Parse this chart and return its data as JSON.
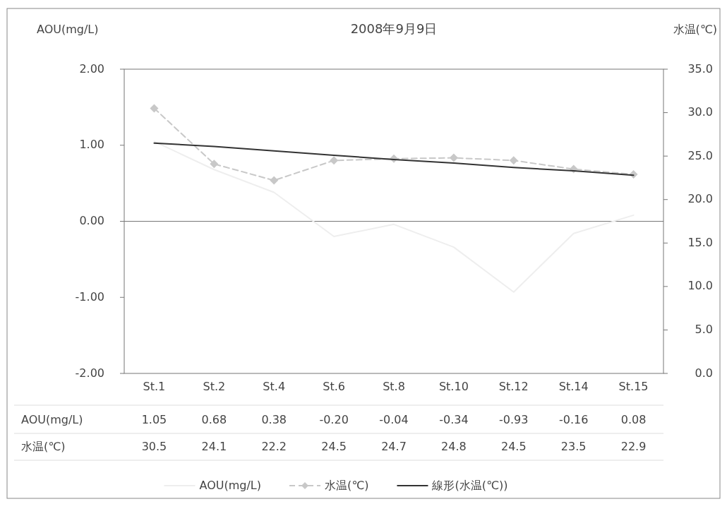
{
  "chart_data": {
    "type": "line",
    "title": "2008年9月9日",
    "ylabel": "AOU(mg/L)",
    "y2label": "水温(℃)",
    "categories": [
      "St.1",
      "St.2",
      "St.4",
      "St.6",
      "St.8",
      "St.10",
      "St.12",
      "St.14",
      "St.15"
    ],
    "ylim": [
      -2,
      2
    ],
    "yticks": [
      {
        "value": -2,
        "label": "-2.00"
      },
      {
        "value": -1,
        "label": "-1.00"
      },
      {
        "value": 0,
        "label": "0.00"
      },
      {
        "value": 1,
        "label": "1.00"
      },
      {
        "value": 2,
        "label": "2.00"
      }
    ],
    "y2lim": [
      0,
      35
    ],
    "y2ticks": [
      {
        "value": 0,
        "label": "0.0"
      },
      {
        "value": 5,
        "label": "5.0"
      },
      {
        "value": 10,
        "label": "10.0"
      },
      {
        "value": 15,
        "label": "15.0"
      },
      {
        "value": 20,
        "label": "20.0"
      },
      {
        "value": 25,
        "label": "25.0"
      },
      {
        "value": 30,
        "label": "30.0"
      },
      {
        "value": 35,
        "label": "35.0"
      }
    ],
    "legend": "bottom",
    "series": [
      {
        "name": "AOU(mg/L)",
        "color": "#eeeeee",
        "values": [
          1.05,
          0.68,
          0.38,
          -0.2,
          -0.04,
          -0.34,
          -0.93,
          -0.16,
          0.08
        ],
        "value_labels": [
          "1.05",
          "0.68",
          "0.38",
          "-0.20",
          "-0.04",
          "-0.34",
          "-0.93",
          "-0.16",
          "0.08"
        ],
        "marker": "none",
        "line_style": "solid"
      },
      {
        "name": "水温(℃)",
        "color": "#c8c8c8",
        "axis": "y2",
        "values": [
          30.5,
          24.1,
          22.2,
          24.5,
          24.7,
          24.8,
          24.5,
          23.5,
          22.9
        ],
        "value_labels": [
          "30.5",
          "24.1",
          "22.2",
          "24.5",
          "24.7",
          "24.8",
          "24.5",
          "23.5",
          "22.9"
        ],
        "marker": "diamond",
        "line_style": "dashed"
      },
      {
        "name": "線形(水温(℃))",
        "color": "#333333",
        "axis": "y2",
        "values": [
          26.5,
          26.1,
          25.6,
          25.1,
          24.6,
          24.2,
          23.7,
          23.3,
          22.8
        ],
        "marker": "none",
        "line_style": "solid"
      }
    ]
  }
}
